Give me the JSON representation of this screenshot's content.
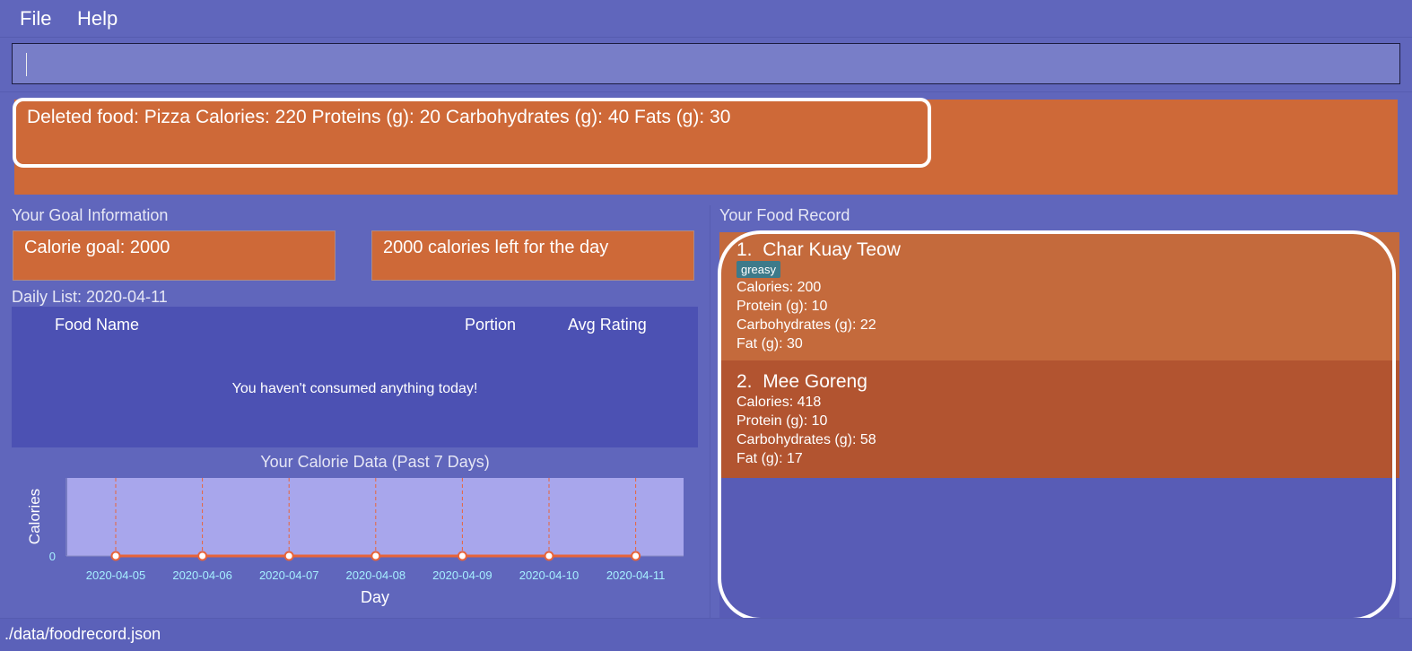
{
  "menu": {
    "file": "File",
    "help": "Help"
  },
  "command": {
    "value": "",
    "placeholder": ""
  },
  "result": {
    "message": "Deleted food: Pizza Calories: 220 Proteins (g): 20 Carbohydrates (g): 40 Fats (g): 30"
  },
  "goals": {
    "section_title": "Your Goal Information",
    "calorie_goal": "Calorie goal: 2000",
    "calories_left": "2000 calories left for the day"
  },
  "daily": {
    "title": "Daily List: 2020-04-11",
    "columns": [
      "Food Name",
      "Portion",
      "Avg Rating"
    ],
    "empty_message": "You haven't consumed anything today!"
  },
  "chart_data": {
    "type": "line",
    "title": "Your Calorie Data (Past 7 Days)",
    "xlabel": "Day",
    "ylabel": "Calories",
    "categories": [
      "2020-04-05",
      "2020-04-06",
      "2020-04-07",
      "2020-04-08",
      "2020-04-09",
      "2020-04-10",
      "2020-04-11"
    ],
    "values": [
      0,
      0,
      0,
      0,
      0,
      0,
      0
    ],
    "y_ticks": [
      "0"
    ],
    "grid": "vertical",
    "colors": {
      "line": "#e8643a",
      "plot_bg": "#a8a6ec",
      "tick_label": "#a6f0ff"
    }
  },
  "food_record": {
    "section_title": "Your Food Record",
    "items": [
      {
        "index": "1.",
        "name": "Char Kuay Teow",
        "tag": "greasy",
        "calories": "Calories: 200",
        "protein": "Protein (g): 10",
        "carbs": "Carbohydrates (g): 22",
        "fat": "Fat (g): 30",
        "color": "#c46a3c"
      },
      {
        "index": "2.",
        "name": "Mee Goreng",
        "calories": "Calories: 418",
        "protein": "Protein (g): 10",
        "carbs": "Carbohydrates (g): 58",
        "fat": "Fat (g): 17",
        "color": "#b25430"
      }
    ]
  },
  "status": {
    "path": "./data/foodrecord.json"
  }
}
